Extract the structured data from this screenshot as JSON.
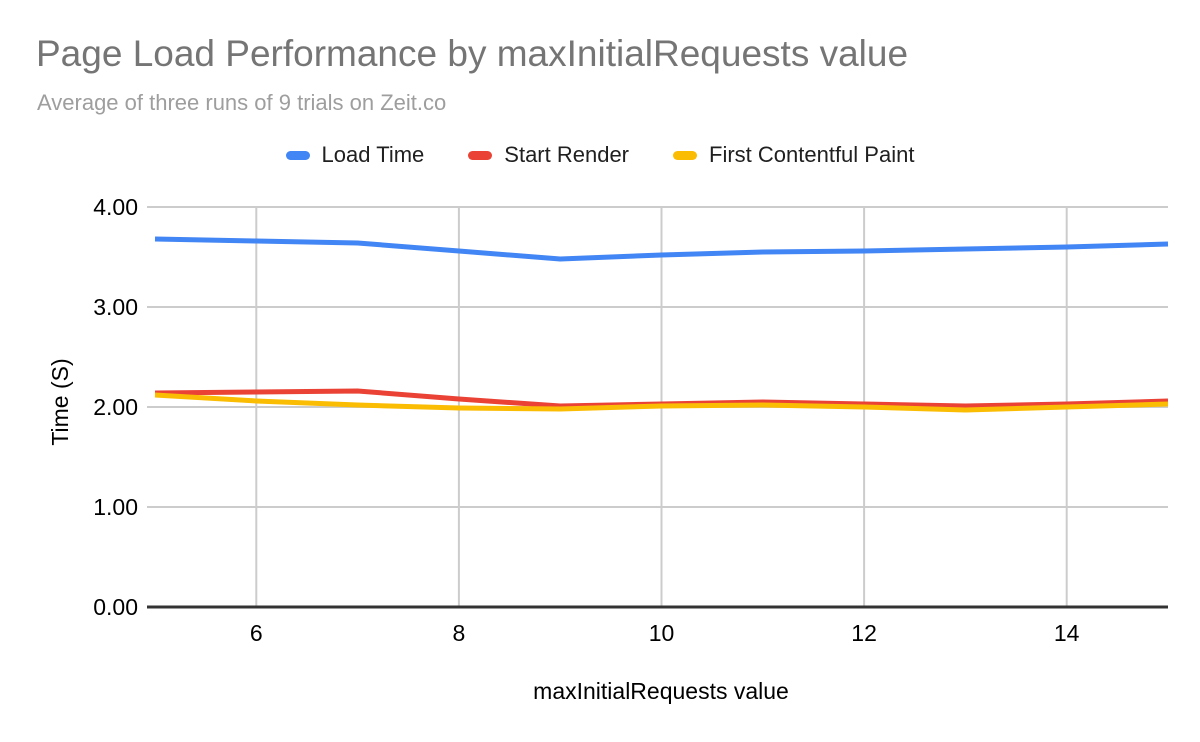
{
  "header": {
    "title": "Page Load Performance by maxInitialRequests value",
    "subtitle": "Average of three runs of 9 trials on Zeit.co"
  },
  "legend": [
    {
      "label": "Load Time",
      "color": "#4285F4"
    },
    {
      "label": "Start Render",
      "color": "#EA4335"
    },
    {
      "label": "First Contentful Paint",
      "color": "#FBBC04"
    }
  ],
  "colors": {
    "gridline": "#cccccc",
    "axis_line": "#333333",
    "title_text": "#757575",
    "subtitle_text": "#9e9e9e",
    "tick_text": "#000000"
  },
  "chart_data": {
    "type": "line",
    "title": "Page Load Performance by maxInitialRequests value",
    "subtitle": "Average of three runs of 9 trials on Zeit.co",
    "xlabel": "maxInitialRequests value",
    "ylabel": "Time (S)",
    "xlim": [
      5,
      15
    ],
    "ylim": [
      0,
      4
    ],
    "grid": true,
    "legend_position": "top",
    "x_ticks": [
      6,
      8,
      10,
      12,
      14
    ],
    "y_ticks": [
      {
        "value": 0,
        "label": "0.00"
      },
      {
        "value": 1,
        "label": "1.00"
      },
      {
        "value": 2,
        "label": "2.00"
      },
      {
        "value": 3,
        "label": "3.00"
      },
      {
        "value": 4,
        "label": "4.00"
      }
    ],
    "x": [
      5,
      6,
      7,
      8,
      9,
      10,
      11,
      12,
      13,
      14,
      15
    ],
    "series": [
      {
        "name": "Load Time",
        "color": "#4285F4",
        "values": [
          3.68,
          3.66,
          3.64,
          3.56,
          3.48,
          3.52,
          3.55,
          3.56,
          3.58,
          3.6,
          3.63
        ]
      },
      {
        "name": "Start Render",
        "color": "#EA4335",
        "values": [
          2.14,
          2.15,
          2.16,
          2.08,
          2.01,
          2.03,
          2.05,
          2.03,
          2.01,
          2.03,
          2.06
        ]
      },
      {
        "name": "First Contentful Paint",
        "color": "#FBBC04",
        "values": [
          2.12,
          2.06,
          2.02,
          1.99,
          1.98,
          2.01,
          2.02,
          2.0,
          1.97,
          2.0,
          2.03
        ]
      }
    ]
  }
}
